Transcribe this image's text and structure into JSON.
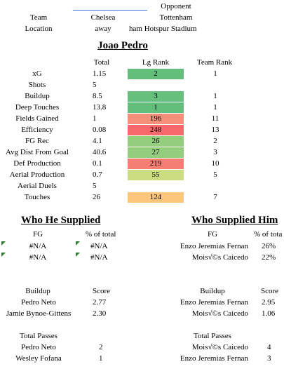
{
  "header": {
    "opponent_label": "Opponent",
    "team_label": "Team",
    "team": "Chelsea",
    "opponent": "Tottenham",
    "location_label": "Location",
    "location": "away",
    "stadium": "ham Hotspur Stadium"
  },
  "player": {
    "name": "Joao Pedro",
    "col_total": "Total",
    "col_lg_rank": "Lg Rank",
    "col_team_rank": "Team Rank",
    "rows": [
      {
        "stat": "xG",
        "total": "1.15",
        "lg_rank": "2",
        "team_rank": "1",
        "color": "#63be7b"
      },
      {
        "stat": "Shots",
        "total": "5",
        "lg_rank": "",
        "team_rank": "",
        "color": ""
      },
      {
        "stat": "Buildup",
        "total": "8.5",
        "lg_rank": "3",
        "team_rank": "1",
        "color": "#66bf7c"
      },
      {
        "stat": "Deep Touches",
        "total": "13.8",
        "lg_rank": "1",
        "team_rank": "1",
        "color": "#63be7b"
      },
      {
        "stat": "Fields Gained",
        "total": "1",
        "lg_rank": "196",
        "team_rank": "11",
        "color": "#f4907a"
      },
      {
        "stat": "Efficiency",
        "total": "0.08",
        "lg_rank": "248",
        "team_rank": "13",
        "color": "#f8696b"
      },
      {
        "stat": "FG Rec",
        "total": "4.1",
        "lg_rank": "26",
        "team_rank": "2",
        "color": "#93cd7e"
      },
      {
        "stat": "Avg Dist From Goal",
        "total": "40.6",
        "lg_rank": "27",
        "team_rank": "3",
        "color": "#95cd7e"
      },
      {
        "stat": "Def Production",
        "total": "0.1",
        "lg_rank": "219",
        "team_rank": "10",
        "color": "#f57e74"
      },
      {
        "stat": "Aerial Production",
        "total": "0.7",
        "lg_rank": "55",
        "team_rank": "5",
        "color": "#cbdc81"
      },
      {
        "stat": "Aerial Duels",
        "total": "5",
        "lg_rank": "",
        "team_rank": "",
        "color": ""
      },
      {
        "stat": "Touches",
        "total": "26",
        "lg_rank": "124",
        "team_rank": "7",
        "color": "#fcc67d"
      }
    ]
  },
  "supplied": {
    "title": "Who He Supplied",
    "fg_label": "FG",
    "pct_label": "% of total",
    "fg_rows": [
      {
        "name": "#N/A",
        "pct": "#N/A"
      },
      {
        "name": "#N/A",
        "pct": "#N/A"
      }
    ],
    "buildup_label": "Buildup",
    "score_label": "Score",
    "buildup_rows": [
      {
        "name": "Pedro Neto",
        "score": "2.77"
      },
      {
        "name": "Jamie Bynoe-Gittens",
        "score": "2.30"
      }
    ],
    "passes_label": "Total Passes",
    "passes_rows": [
      {
        "name": "Pedro Neto",
        "value": "2"
      },
      {
        "name": "Wesley Fofana",
        "value": "1"
      }
    ]
  },
  "supplied_him": {
    "title": "Who Supplied Him",
    "fg_label": "FG",
    "pct_label": "% of tota",
    "fg_rows": [
      {
        "name": "Enzo Jeremias Fernan",
        "pct": "26%"
      },
      {
        "name": "Mois√©s Caicedo",
        "pct": "22%"
      }
    ],
    "buildup_label": "Buildup",
    "score_label": "Score",
    "buildup_rows": [
      {
        "name": "Enzo Jeremias Fernan",
        "score": "2.95"
      },
      {
        "name": "Mois√©s Caicedo",
        "score": "1.06"
      }
    ],
    "passes_label": "Total Passes",
    "passes_rows": [
      {
        "name": "Mois√©s Caicedo",
        "value": "4"
      },
      {
        "name": "Enzo Jeremias Fernan",
        "value": "3"
      }
    ]
  }
}
